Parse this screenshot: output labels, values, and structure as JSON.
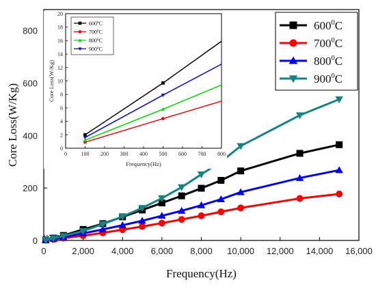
{
  "chart_data": [
    {
      "type": "line",
      "xlabel": "Frequency(Hz)",
      "ylabel": "Core Loss(W/Kg)",
      "xlim": [
        0,
        16000
      ],
      "ylim": [
        0,
        880
      ],
      "xticks": [
        0,
        2000,
        4000,
        6000,
        8000,
        10000,
        12000,
        14000,
        16000
      ],
      "xtick_labels": [
        "0",
        "2,000",
        "4,000",
        "6,000",
        "8,000",
        "10,000",
        "12,000",
        "14,000",
        "16,000"
      ],
      "yticks": [
        0,
        200,
        400,
        600,
        800
      ],
      "ytick_labels": [
        "0",
        "200",
        "400",
        "600",
        "800"
      ],
      "legend_position": "top-right",
      "series": [
        {
          "name": "600",
          "unit": "C",
          "sup": "0",
          "color": "#000000",
          "marker": "square",
          "x": [
            100,
            500,
            1000,
            2000,
            3000,
            4000,
            5000,
            6000,
            7000,
            8000,
            9000,
            10000,
            13000,
            15000
          ],
          "y": [
            2,
            9,
            19,
            42,
            64,
            90,
            116,
            143,
            170,
            199,
            229,
            265,
            332,
            365
          ]
        },
        {
          "name": "700",
          "unit": "C",
          "sup": "0",
          "color": "#ff0000",
          "marker": "circle",
          "x": [
            100,
            500,
            1000,
            2000,
            3000,
            4000,
            5000,
            6000,
            7000,
            8000,
            9000,
            10000,
            13000,
            15000
          ],
          "y": [
            1,
            4,
            9,
            18,
            29,
            41,
            53,
            66,
            80,
            94,
            109,
            124,
            160,
            177
          ]
        },
        {
          "name": "800",
          "unit": "C",
          "sup": "0",
          "color": "#0000ff",
          "marker": "triangle-up",
          "x": [
            100,
            500,
            1000,
            2000,
            3000,
            4000,
            5000,
            6000,
            7000,
            8000,
            9000,
            10000,
            13000,
            15000
          ],
          "y": [
            1.5,
            5.5,
            12,
            27,
            42,
            58,
            75,
            94,
            113,
            134,
            157,
            184,
            238,
            268
          ]
        },
        {
          "name": "900",
          "unit": "C",
          "sup": "0",
          "color": "#138484",
          "marker": "triangle-down",
          "x": [
            100,
            500,
            1000,
            2000,
            3000,
            4000,
            5000,
            6000,
            7000,
            8000,
            9000,
            10000,
            13000,
            15000
          ],
          "y": [
            2,
            8,
            17,
            36,
            62,
            91,
            124,
            161,
            203,
            252,
            300,
            360,
            477,
            538
          ]
        }
      ]
    },
    {
      "type": "line",
      "xlabel": "Frequency(Hz)",
      "ylabel": "Core Loss(W/Kg)",
      "xlim": [
        0,
        800
      ],
      "ylim": [
        0,
        20
      ],
      "xticks": [
        0,
        100,
        200,
        300,
        400,
        500,
        600,
        700,
        800
      ],
      "xtick_labels": [
        "0",
        "100",
        "200",
        "300",
        "400",
        "500",
        "600",
        "700",
        "800"
      ],
      "yticks": [
        0,
        2,
        4,
        6,
        8,
        10,
        12,
        14,
        16,
        18,
        20
      ],
      "ytick_labels": [
        "0",
        "2",
        "4",
        "6",
        "8",
        "10",
        "12",
        "14",
        "16",
        "18",
        "20"
      ],
      "legend_position": "top-left",
      "series": [
        {
          "name": "600",
          "unit": "C",
          "sup": "0",
          "color": "#000000",
          "marker": "square",
          "x": [
            100,
            500,
            800
          ],
          "y": [
            2.0,
            9.7,
            15.9
          ]
        },
        {
          "name": "700",
          "unit": "C",
          "sup": "0",
          "color": "#ff0000",
          "marker": "circle",
          "x": [
            100,
            500,
            800
          ],
          "y": [
            0.9,
            4.4,
            7.0
          ]
        },
        {
          "name": "800",
          "unit": "C",
          "sup": "0",
          "color": "#00dd00",
          "marker": "triangle-up",
          "x": [
            100,
            500,
            800
          ],
          "y": [
            1.2,
            5.8,
            9.4
          ]
        },
        {
          "name": "900",
          "unit": "C",
          "sup": "0",
          "color": "#0000ff",
          "marker": "triangle-down",
          "x": [
            100,
            500,
            800
          ],
          "y": [
            1.6,
            7.9,
            12.5
          ]
        }
      ]
    }
  ]
}
